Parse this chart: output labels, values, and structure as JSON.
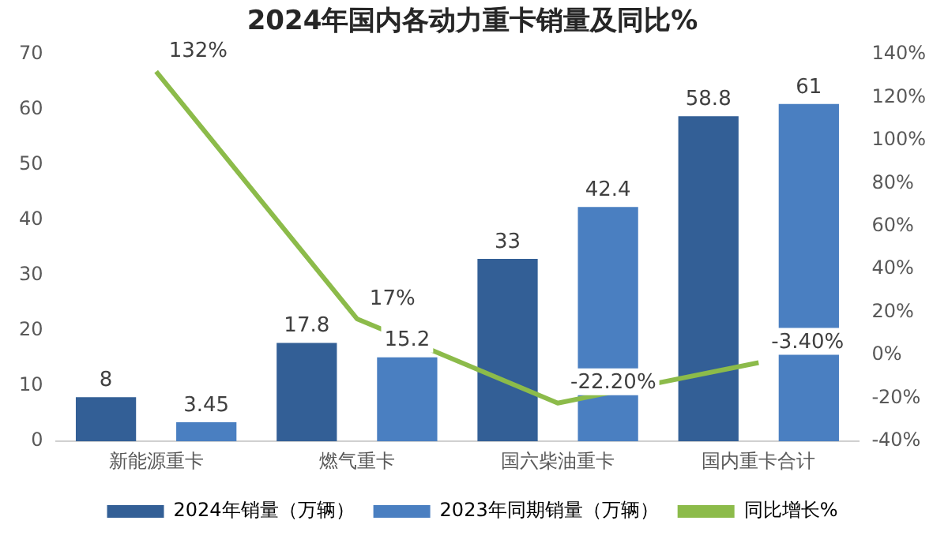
{
  "chart_data": {
    "type": "bar",
    "title": "2024年国内各动力重卡销量及同比%",
    "categories": [
      "新能源重卡",
      "燃气重卡",
      "国六柴油重卡",
      "国内重卡合计"
    ],
    "series": [
      {
        "name": "2024年销量（万辆）",
        "color": "#335f96",
        "values": [
          8,
          17.8,
          33,
          58.8
        ],
        "value_labels": [
          "8",
          "17.8",
          "33",
          "58.8"
        ]
      },
      {
        "name": "2023年同期销量（万辆）",
        "color": "#4a7fc1",
        "values": [
          3.45,
          15.2,
          42.4,
          61
        ],
        "value_labels": [
          "3.45",
          "15.2",
          "42.4",
          "61"
        ]
      },
      {
        "name": "同比增长%",
        "type": "line",
        "axis": "y2",
        "color": "#8cbb4a",
        "values": [
          132,
          17,
          -22.2,
          -3.4
        ],
        "value_labels": [
          "132%",
          "17%",
          "-22.20%",
          "-3.40%"
        ]
      }
    ],
    "ylim": [
      0,
      70
    ],
    "yticks": [
      0,
      10,
      20,
      30,
      40,
      50,
      60,
      70
    ],
    "y2lim": [
      -40,
      140
    ],
    "y2ticks": [
      {
        "value": -40,
        "label": "-40%"
      },
      {
        "value": -20,
        "label": "-20%"
      },
      {
        "value": 0,
        "label": "0%"
      },
      {
        "value": 20,
        "label": "20%"
      },
      {
        "value": 40,
        "label": "40%"
      },
      {
        "value": 60,
        "label": "60%"
      },
      {
        "value": 80,
        "label": "80%"
      },
      {
        "value": 100,
        "label": "100%"
      },
      {
        "value": 120,
        "label": "120%"
      },
      {
        "value": 140,
        "label": "140%"
      }
    ],
    "grid": false,
    "legend": "bottom",
    "marker": "none"
  }
}
